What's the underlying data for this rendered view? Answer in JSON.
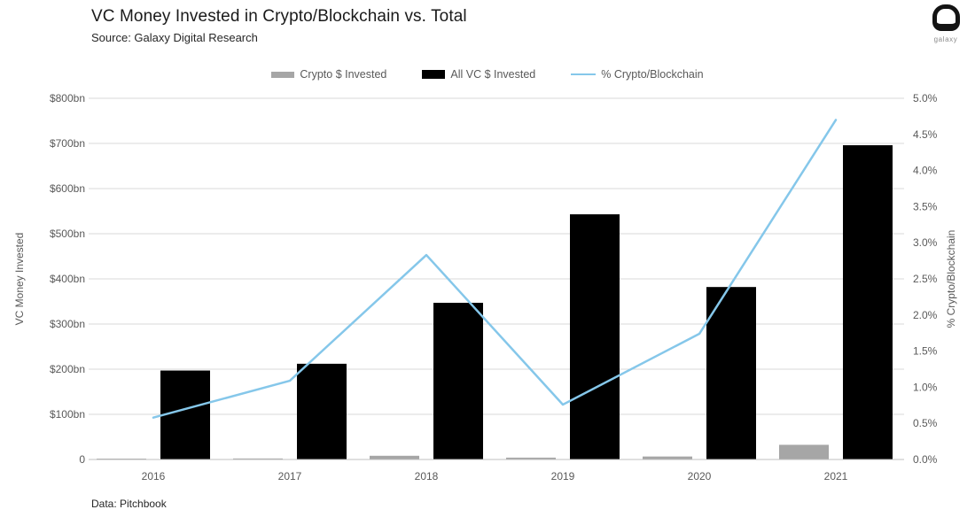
{
  "header": {
    "title": "VC Money Invested in Crypto/Blockchain vs. Total",
    "subtitle": "Source: Galaxy Digital Research"
  },
  "logo": {
    "label": "galaxy"
  },
  "legend": {
    "items": [
      {
        "key": "crypto-usd-invested",
        "label": "Crypto $ Invested",
        "type": "bar",
        "color": "#a6a6a6"
      },
      {
        "key": "all-vc-usd-invested",
        "label": "All VC $ Invested",
        "type": "bar",
        "color": "#000000"
      },
      {
        "key": "pct-crypto-blockchain",
        "label": "% Crypto/Blockchain",
        "type": "line",
        "color": "#85c7ea"
      }
    ]
  },
  "chart_data": {
    "type": "combo",
    "title": "VC Money Invested in Crypto/Blockchain vs. Total",
    "categories": [
      "2016",
      "2017",
      "2018",
      "2019",
      "2020",
      "2021"
    ],
    "series": [
      {
        "name": "Crypto $ Invested",
        "type": "bar",
        "axis": "left",
        "color": "#a6a6a6",
        "values": [
          1.1,
          2.3,
          8.2,
          4.1,
          6.6,
          32.5
        ]
      },
      {
        "name": "All VC $ Invested",
        "type": "bar",
        "axis": "left",
        "color": "#000000",
        "values": [
          197,
          212,
          347,
          543,
          382,
          696
        ]
      },
      {
        "name": "% Crypto/Blockchain",
        "type": "line",
        "axis": "right",
        "color": "#85c7ea",
        "values": [
          0.58,
          1.09,
          2.83,
          0.76,
          1.74,
          4.7
        ]
      }
    ],
    "left_axis": {
      "label": "VC Money Invested",
      "min": 0,
      "max": 800,
      "step": 100,
      "unit": "$bn",
      "ticks": [
        "$800bn",
        "$700bn",
        "$600bn",
        "$500bn",
        "$400bn",
        "$300bn",
        "$200bn",
        "$100bn",
        "0"
      ]
    },
    "right_axis": {
      "label": "% Crypto/Blockchain",
      "min": 0,
      "max": 5,
      "step": 0.5,
      "unit": "%",
      "ticks": [
        "5.0%",
        "4.5%",
        "4.0%",
        "3.5%",
        "3.0%",
        "2.5%",
        "2.0%",
        "1.5%",
        "1.0%",
        "0.5%",
        "0.0%"
      ]
    },
    "grid": true,
    "legend_position": "top"
  },
  "footer": {
    "note": "Data: Pitchbook"
  },
  "colors": {
    "background": "#ffffff",
    "grid": "#d9d9d9",
    "axis_line": "#bfbfbf",
    "tick_text": "#595959",
    "axis_title_text": "#595959",
    "legend_text": "#595959",
    "title_text": "#1a1a1a",
    "subtitle_text": "#262626",
    "footer_text": "#262626",
    "logo_text": "#8c8c8c",
    "line_accent": "#85c7ea",
    "bar_gray": "#a6a6a6",
    "bar_black": "#000000"
  }
}
